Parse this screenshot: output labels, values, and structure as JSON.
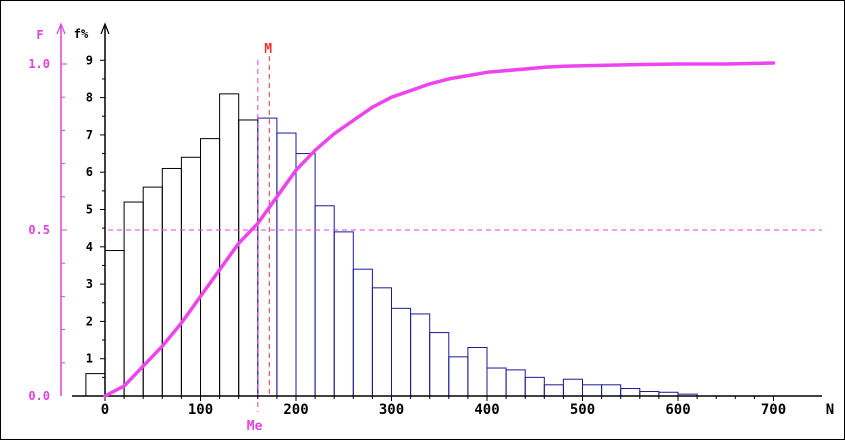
{
  "chart_data": {
    "type": "bar",
    "x_axis": {
      "label": "N",
      "ticks": [
        0,
        100,
        200,
        300,
        400,
        500,
        600,
        700
      ],
      "range": [
        0,
        710
      ],
      "minor_step": 20
    },
    "y_axis_left_fpct": {
      "label": "f%",
      "ticks": [
        1,
        2,
        3,
        4,
        5,
        6,
        7,
        8,
        9
      ],
      "range": [
        0,
        9.5
      ]
    },
    "y_axis_cumulative_F": {
      "label": "F",
      "ticks": [
        "0.0",
        "0.5",
        "1.0"
      ],
      "range": [
        0,
        1.0
      ]
    },
    "bin_width": 20,
    "histogram": {
      "x_start": [
        -20,
        0,
        20,
        40,
        60,
        80,
        100,
        120,
        140,
        160,
        180,
        200,
        220,
        240,
        260,
        280,
        300,
        320,
        340,
        360,
        380,
        400,
        420,
        440,
        460,
        480,
        500,
        520,
        540,
        560,
        580,
        600
      ],
      "values": [
        0.6,
        3.9,
        5.2,
        5.6,
        6.1,
        6.4,
        6.9,
        8.1,
        7.4,
        7.45,
        7.05,
        6.5,
        5.1,
        4.4,
        3.4,
        2.9,
        2.35,
        2.2,
        1.7,
        1.05,
        1.3,
        0.75,
        0.7,
        0.5,
        0.3,
        0.45,
        0.3,
        0.3,
        0.2,
        0.12,
        0.1,
        0.05
      ],
      "split_at_median": 160,
      "color_below_median": "#000000",
      "color_above_median": "#1a1a99"
    },
    "cumulative_curve": {
      "x": [
        0,
        20,
        40,
        60,
        80,
        100,
        120,
        140,
        160,
        180,
        200,
        220,
        240,
        260,
        280,
        300,
        320,
        340,
        360,
        380,
        400,
        420,
        440,
        460,
        480,
        500,
        550,
        600,
        650,
        700
      ],
      "F": [
        0.0,
        0.03,
        0.09,
        0.15,
        0.22,
        0.3,
        0.38,
        0.46,
        0.52,
        0.6,
        0.68,
        0.74,
        0.79,
        0.83,
        0.87,
        0.9,
        0.92,
        0.94,
        0.955,
        0.965,
        0.975,
        0.98,
        0.985,
        0.99,
        0.993,
        0.995,
        0.998,
        1.0,
        1.0,
        1.003
      ],
      "color": "#ee44ee"
    },
    "reference_lines": {
      "median": {
        "label": "Me",
        "x": 160,
        "color": "#dd44dd"
      },
      "mean": {
        "label": "M",
        "x": 172,
        "color": "#ee3333"
      },
      "half_level": {
        "F": 0.5,
        "color": "#dd44dd"
      }
    },
    "colors": {
      "axis": "#000000",
      "F_axis": "#dd44dd",
      "tick_text_F": "#dd44dd"
    }
  }
}
